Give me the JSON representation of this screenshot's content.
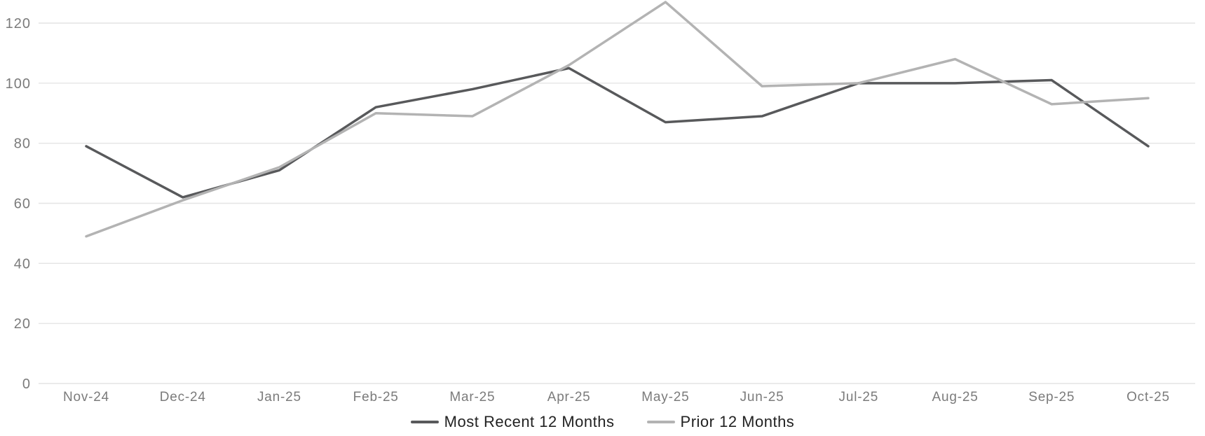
{
  "chart_data": {
    "type": "line",
    "title": "",
    "xlabel": "",
    "ylabel": "",
    "categories": [
      "Nov-24",
      "Dec-24",
      "Jan-25",
      "Feb-25",
      "Mar-25",
      "Apr-25",
      "May-25",
      "Jun-25",
      "Jul-25",
      "Aug-25",
      "Sep-25",
      "Oct-25"
    ],
    "series": [
      {
        "name": "Most Recent 12 Months",
        "values": [
          79,
          62,
          71,
          92,
          98,
          105,
          87,
          89,
          100,
          100,
          101,
          79
        ],
        "color": "#58595b"
      },
      {
        "name": "Prior 12 Months",
        "values": [
          49,
          61,
          72,
          90,
          89,
          106,
          127,
          99,
          100,
          108,
          93,
          95
        ],
        "color": "#b3b3b3"
      }
    ],
    "ylim": [
      0,
      120
    ],
    "y_ticks": [
      0,
      20,
      40,
      60,
      80,
      100,
      120
    ],
    "grid": "horizontal",
    "legend_position": "bottom",
    "colors": {
      "gridline": "#e4e4e4",
      "axis_label": "#7b7b7b",
      "legend_text": "#222222",
      "background": "#ffffff"
    }
  }
}
